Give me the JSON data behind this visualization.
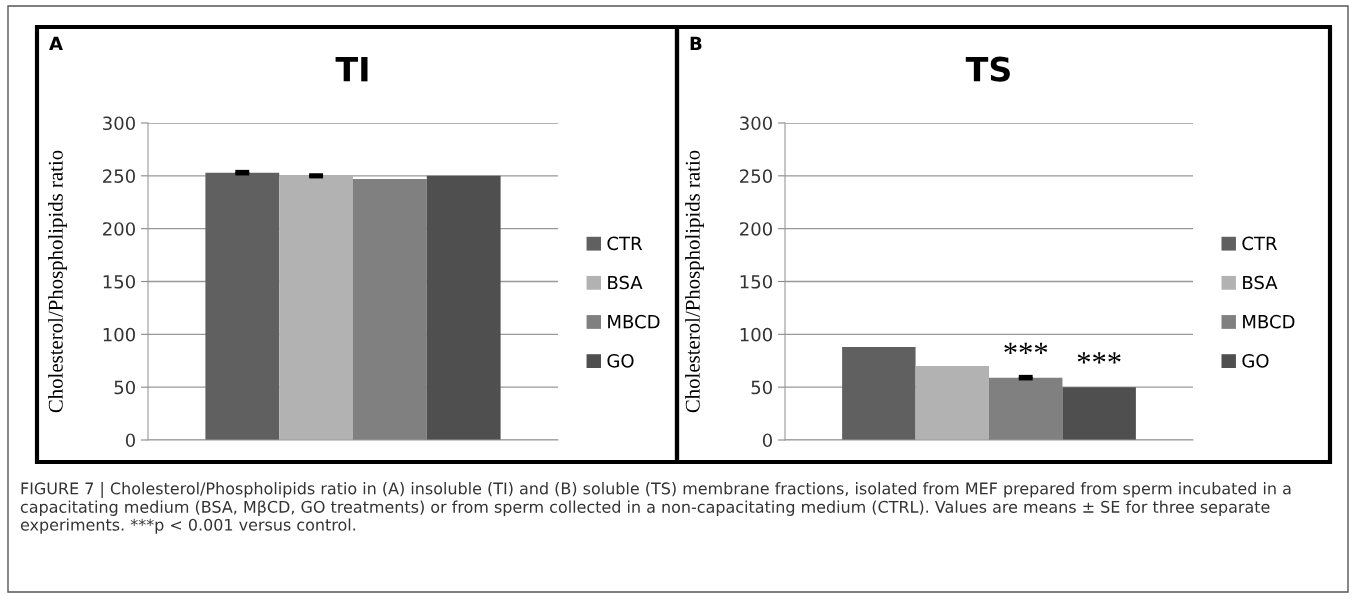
{
  "chart_data": [
    {
      "type": "bar",
      "title": "TI",
      "ylabel": "Cholesterol/Phospholipids ratio",
      "categories": [
        null
      ],
      "series": [
        {
          "name": "CTR",
          "color": "#606060",
          "values": [
            253
          ],
          "errors": [
            1
          ]
        },
        {
          "name": "BSA",
          "color": "#b2b2b2",
          "values": [
            250
          ],
          "errors": [
            0.8
          ]
        },
        {
          "name": "MBCD",
          "color": "#808080",
          "values": [
            247
          ]
        },
        {
          "name": "GO",
          "color": "#4f4f4f",
          "values": [
            250
          ]
        }
      ],
      "ylim": [
        0,
        300
      ],
      "yticks": [
        0,
        50,
        100,
        150,
        200,
        250,
        300
      ],
      "grid": "y",
      "legend": "right",
      "annotations": [
        "A",
        "FIGURE 7 | Cholesterol/Phospholipids ratio in (A) insoluble (TI) and (B) soluble (TS) membrane fractions, isolated from MEF prepared from sperm incubated in a capacitating medium (BSA, MβCD, GO treatments) or from sperm collected in a non-capacitating medium (CTRL). Values are means ± SE for three separate experiments. ***p < 0.001 versus control."
      ]
    },
    {
      "type": "bar",
      "title": "TS",
      "ylabel": "Cholesterol/Phospholipids ratio",
      "categories": [
        null
      ],
      "series": [
        {
          "name": "CTR",
          "color": "#606060",
          "values": [
            88
          ]
        },
        {
          "name": "BSA",
          "color": "#b2b2b2",
          "values": [
            70
          ]
        },
        {
          "name": "MBCD",
          "color": "#808080",
          "values": [
            59
          ],
          "errors": [
            1
          ],
          "value_labels": [
            "***"
          ]
        },
        {
          "name": "GO",
          "color": "#4f4f4f",
          "values": [
            50
          ],
          "value_labels": [
            "***"
          ]
        }
      ],
      "ylim": [
        0,
        300
      ],
      "yticks": [
        0,
        50,
        100,
        150,
        200,
        250,
        300
      ],
      "grid": "y",
      "legend": "right",
      "annotations": [
        "B"
      ]
    }
  ]
}
